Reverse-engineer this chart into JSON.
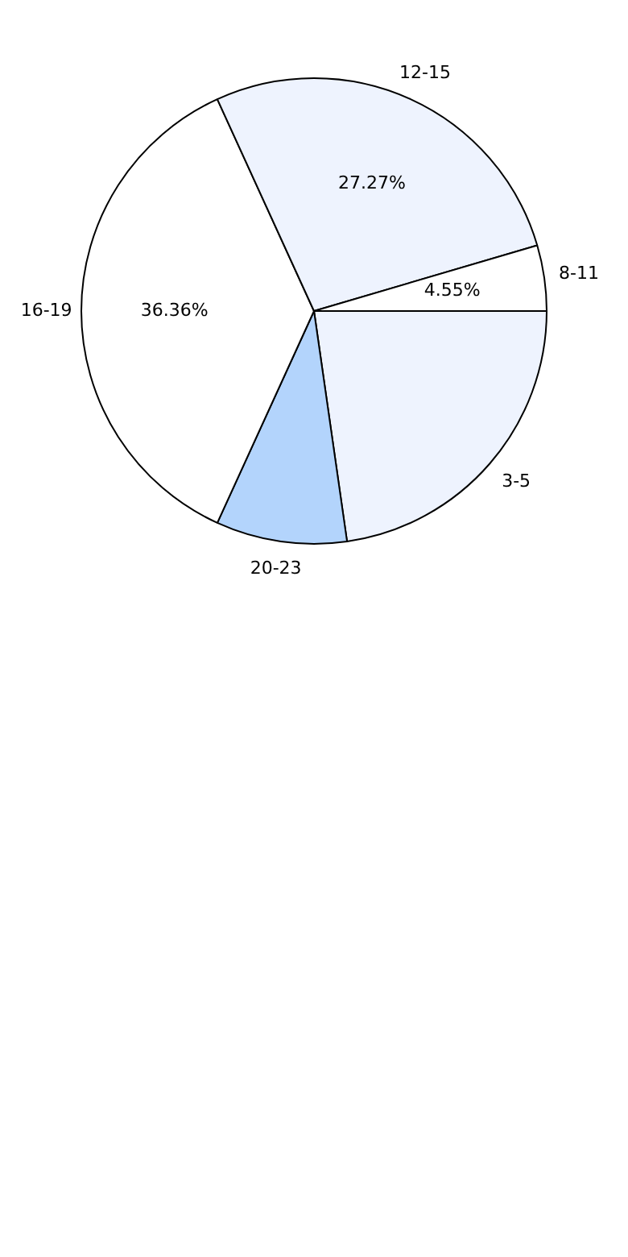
{
  "chart_data": {
    "type": "pie",
    "categories": [
      "3-5",
      "20-23",
      "16-19",
      "12-15",
      "8-11"
    ],
    "values": [
      22.73,
      9.09,
      36.36,
      27.27,
      4.55
    ],
    "colors": [
      "#eef3fe",
      "#b3d4fc",
      "#ffffff",
      "#eef3fe",
      "#ffffff"
    ],
    "value_labels": [
      null,
      null,
      "36.36%",
      "27.27%",
      "4.55%"
    ],
    "legend": false
  }
}
